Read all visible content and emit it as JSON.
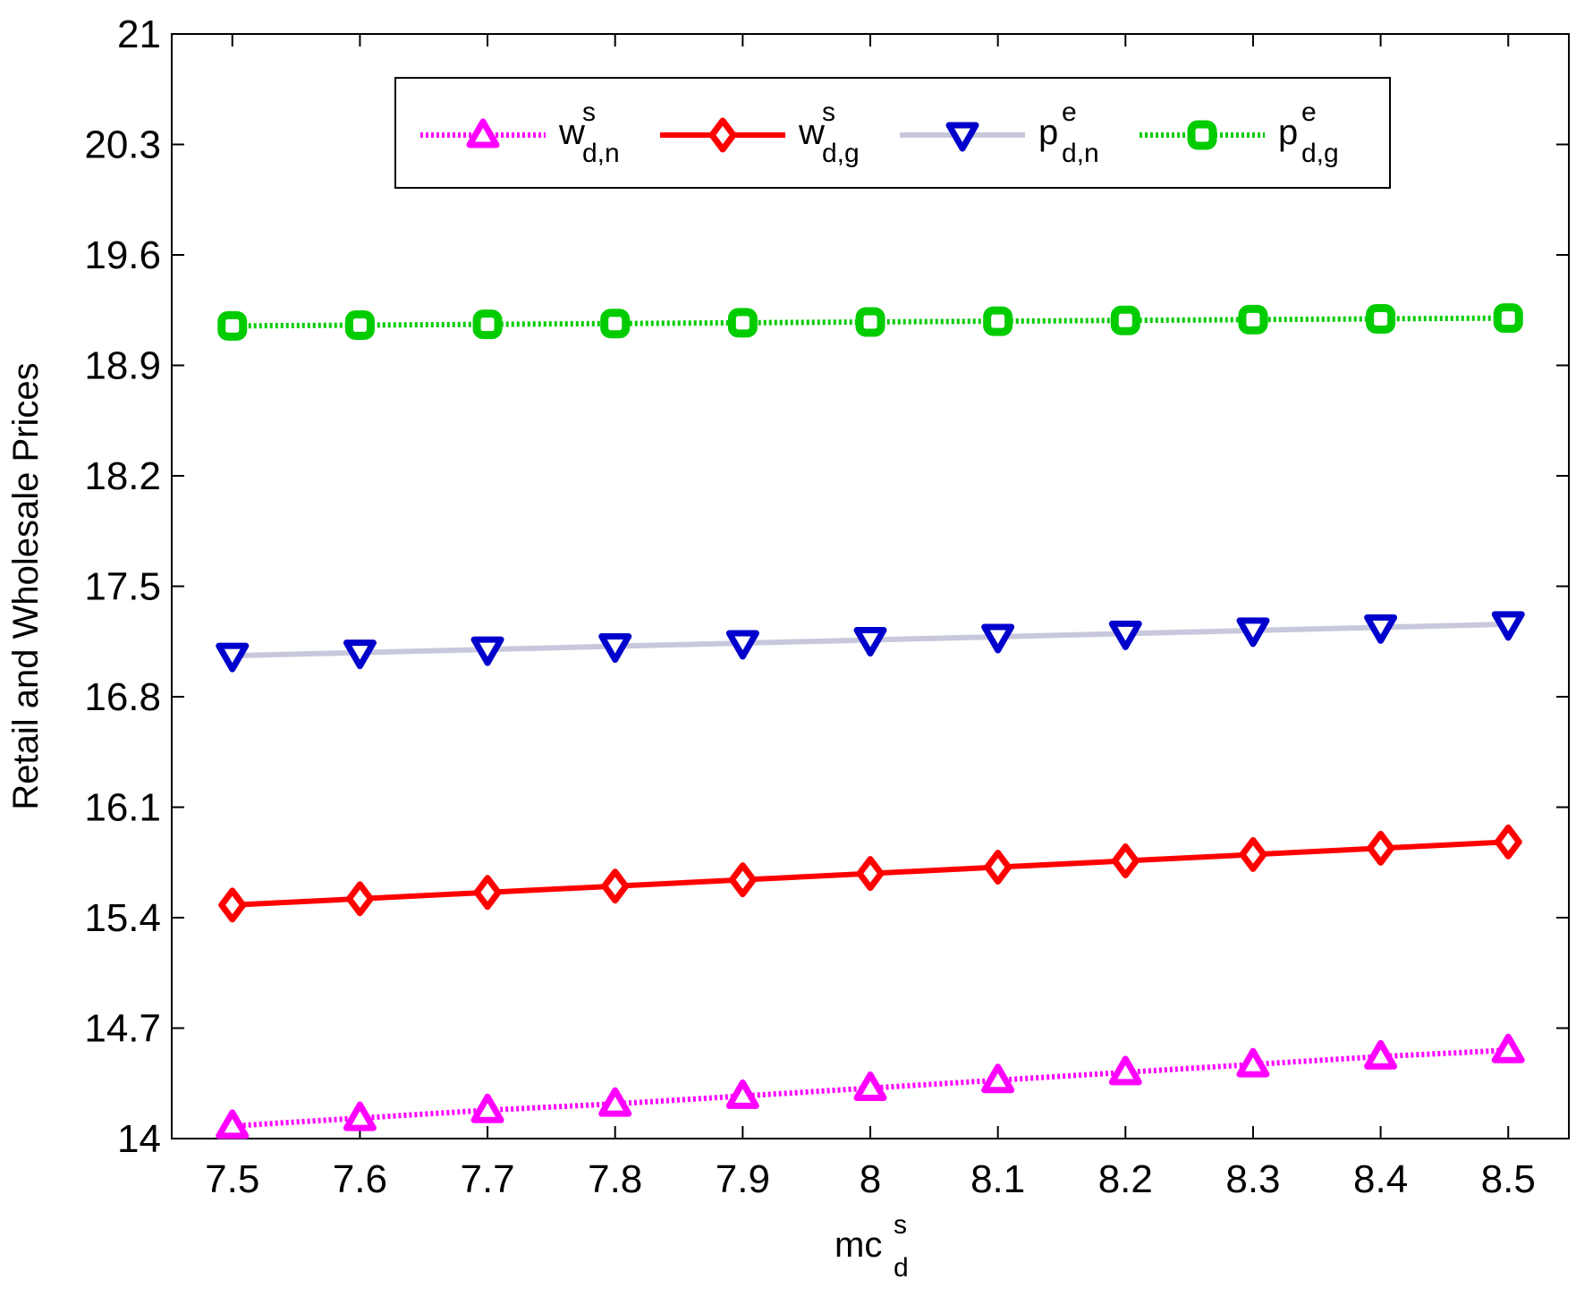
{
  "chart_data": {
    "type": "line",
    "title": "",
    "xlabel": {
      "base": "mc",
      "sup": "s",
      "sub": "d"
    },
    "ylabel": "Retail and Wholesale Prices",
    "xlim": [
      7.5,
      8.5
    ],
    "ylim": [
      14,
      21
    ],
    "x_ticks": [
      7.5,
      7.6,
      7.7,
      7.8,
      7.9,
      8,
      8.1,
      8.2,
      8.3,
      8.4,
      8.5
    ],
    "x_tick_labels": [
      "7.5",
      "7.6",
      "7.7",
      "7.8",
      "7.9",
      "8",
      "8.1",
      "8.2",
      "8.3",
      "8.4",
      "8.5"
    ],
    "y_ticks": [
      14,
      14.7,
      15.4,
      16.1,
      16.8,
      17.5,
      18.2,
      18.9,
      19.6,
      20.3,
      21
    ],
    "y_tick_labels": [
      "14",
      "14.7",
      "15.4",
      "16.1",
      "16.8",
      "17.5",
      "18.2",
      "18.9",
      "19.6",
      "20.3",
      "21"
    ],
    "grid": false,
    "legend_position": "top",
    "x": [
      7.5,
      7.6,
      7.7,
      7.8,
      7.9,
      8.0,
      8.1,
      8.2,
      8.3,
      8.4,
      8.5
    ],
    "series": [
      {
        "name": "w^s_{d,n}",
        "label": {
          "base": "w",
          "sup": "s",
          "sub": "d,n"
        },
        "values": [
          14.08,
          14.13,
          14.18,
          14.22,
          14.27,
          14.32,
          14.37,
          14.42,
          14.47,
          14.52,
          14.56
        ],
        "color": "#ff00ff",
        "line_style": "dotted",
        "marker": "triangle-up"
      },
      {
        "name": "w^s_{d,g}",
        "label": {
          "base": "w",
          "sup": "s",
          "sub": "d,g"
        },
        "values": [
          15.48,
          15.52,
          15.56,
          15.6,
          15.64,
          15.68,
          15.72,
          15.76,
          15.8,
          15.84,
          15.88
        ],
        "color": "#ff0000",
        "line_style": "solid",
        "marker": "diamond"
      },
      {
        "name": "p^e_{d,n}",
        "label": {
          "base": "p",
          "sup": "e",
          "sub": "d,n"
        },
        "values": [
          17.06,
          17.08,
          17.1,
          17.12,
          17.14,
          17.16,
          17.18,
          17.2,
          17.22,
          17.24,
          17.26
        ],
        "color": "#0000cc",
        "line_color": "#c8c8dc",
        "line_style": "solid",
        "marker": "triangle-down"
      },
      {
        "name": "p^e_{d,g}",
        "label": {
          "base": "p",
          "sup": "e",
          "sub": "d,g"
        },
        "values": [
          19.15,
          19.155,
          19.16,
          19.165,
          19.17,
          19.175,
          19.18,
          19.185,
          19.19,
          19.195,
          19.2
        ],
        "color": "#00cc00",
        "line_style": "dotted",
        "marker": "square"
      }
    ]
  }
}
